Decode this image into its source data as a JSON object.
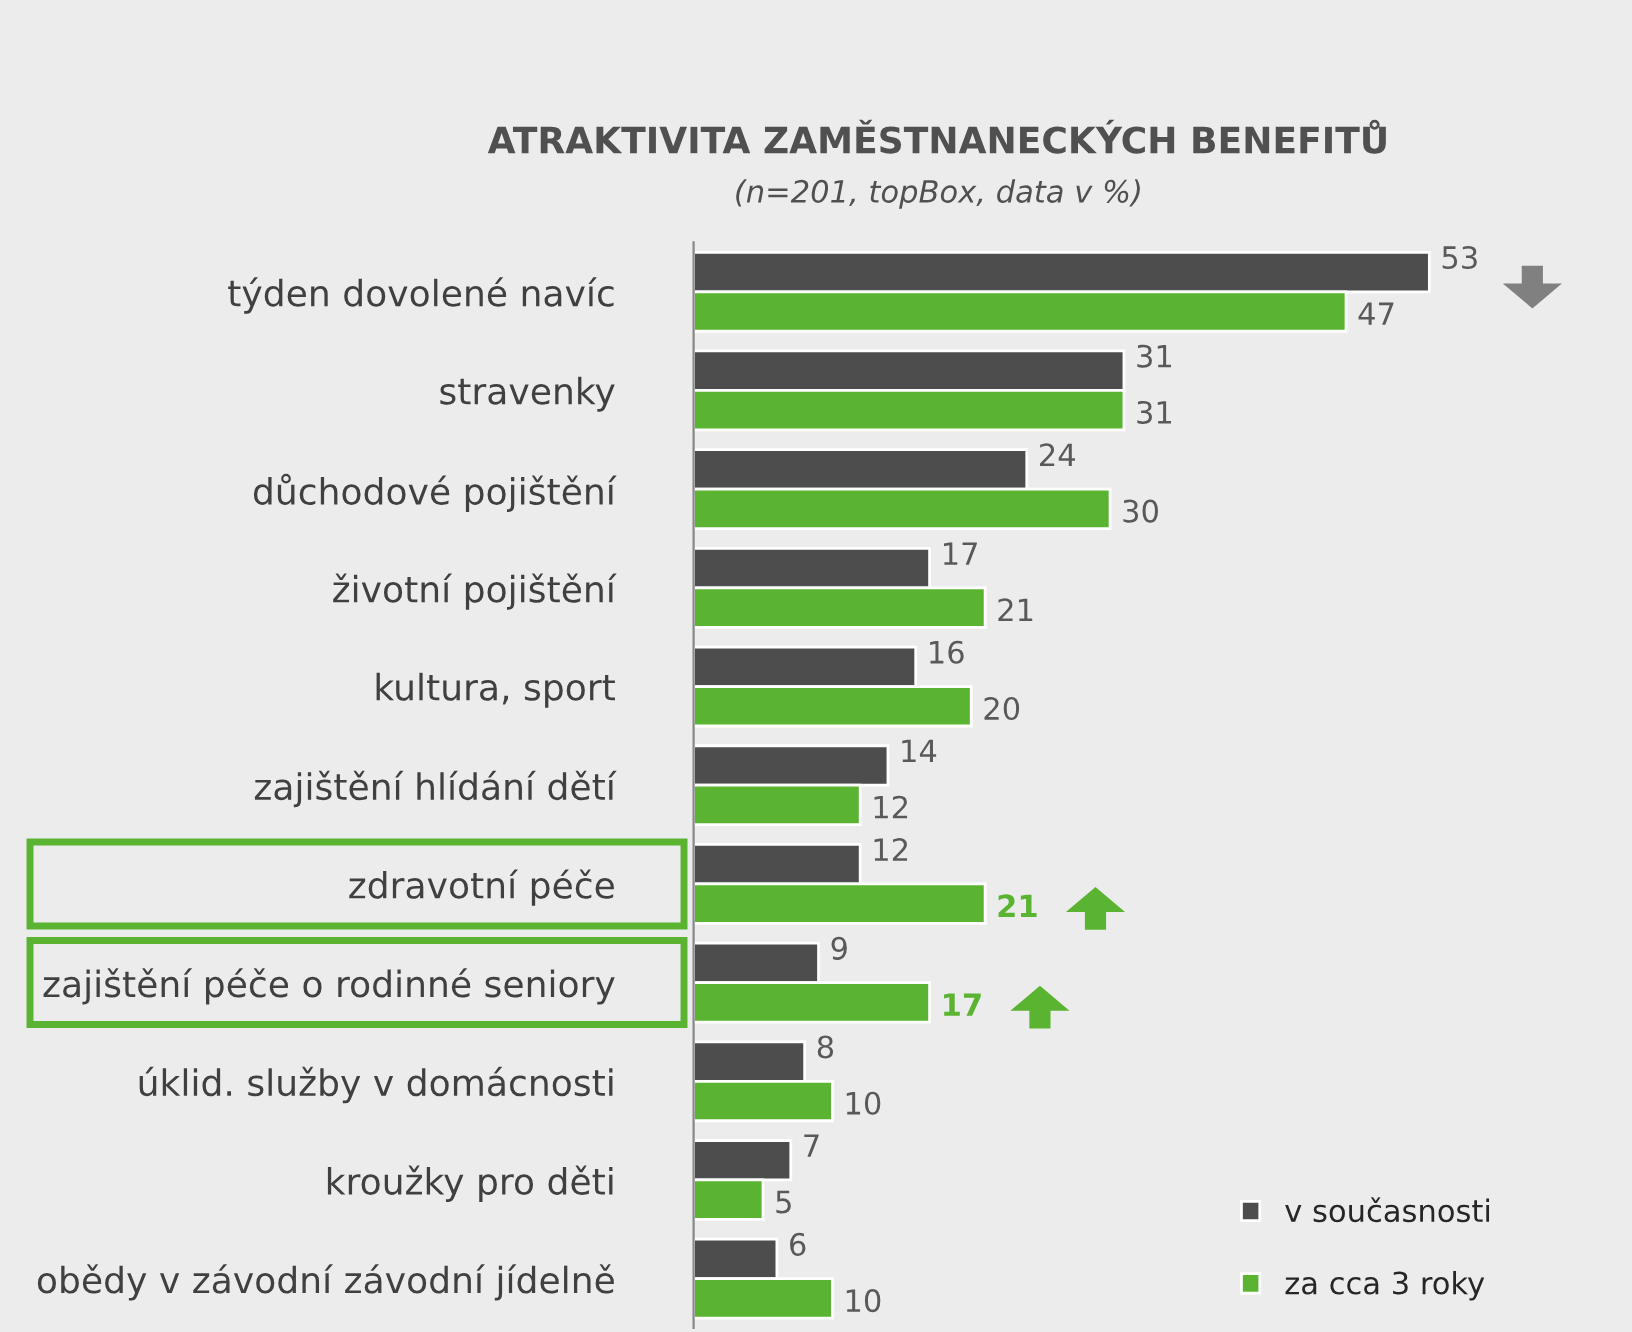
{
  "chart_data": {
    "type": "bar",
    "orientation": "horizontal",
    "title": "ATRAKTIVITA ZAMĚSTNANECKÝCH BENEFITŮ",
    "subtitle": "(n=201, topBox, data v %)",
    "categories": [
      "týden dovolené navíc",
      "stravenky",
      "důchodové pojištění",
      "životní pojištění",
      "kultura, sport",
      "zajištění hlídání dětí",
      "zdravotní péče",
      "zajištění péče o rodinné seniory",
      "úklid. služby v domácnosti",
      "kroužky pro děti",
      "obědy v závodní závodní jídelně"
    ],
    "series": [
      {
        "name": "v současnosti",
        "color": "#4d4d4d",
        "values": [
          53,
          31,
          24,
          17,
          16,
          14,
          12,
          9,
          8,
          7,
          6
        ]
      },
      {
        "name": "za cca 3 roky",
        "color": "#5ab431",
        "values": [
          47,
          31,
          30,
          21,
          20,
          12,
          21,
          17,
          10,
          5,
          10
        ]
      }
    ],
    "data_labels": true,
    "legend": "bottom right",
    "grid": false
  }
}
